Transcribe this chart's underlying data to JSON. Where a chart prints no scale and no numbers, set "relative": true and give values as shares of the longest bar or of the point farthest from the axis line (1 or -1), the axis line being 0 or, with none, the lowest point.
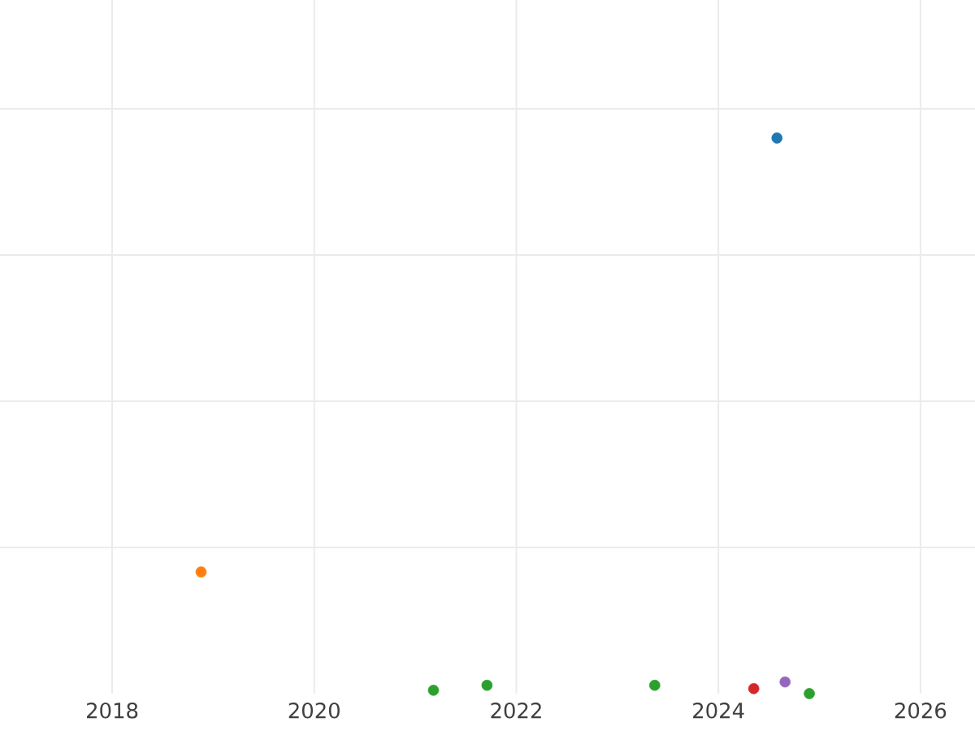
{
  "chart_data": {
    "type": "scatter",
    "relative": true,
    "grid": true,
    "marker": "circle",
    "xlim": [
      2016.89,
      2026.54
    ],
    "xticks": [
      2018,
      2020,
      2022,
      2024,
      2026
    ],
    "series": [
      {
        "color": "#1f77b4",
        "x": [
          2024.58
        ],
        "values": [
          1
        ]
      },
      {
        "color": "#ff7f0e",
        "x": [
          2018.88
        ],
        "values": [
          0.219
        ]
      },
      {
        "color": "#2ca02c",
        "x": [
          2021.18,
          2021.71,
          2023.37,
          2024.9
        ],
        "values": [
          0.006,
          0.015,
          0.015,
          0
        ]
      },
      {
        "color": "#d62728",
        "x": [
          2024.35
        ],
        "values": [
          0.009
        ]
      },
      {
        "color": "#9467bd",
        "x": [
          2024.66
        ],
        "values": [
          0.021
        ]
      }
    ]
  }
}
